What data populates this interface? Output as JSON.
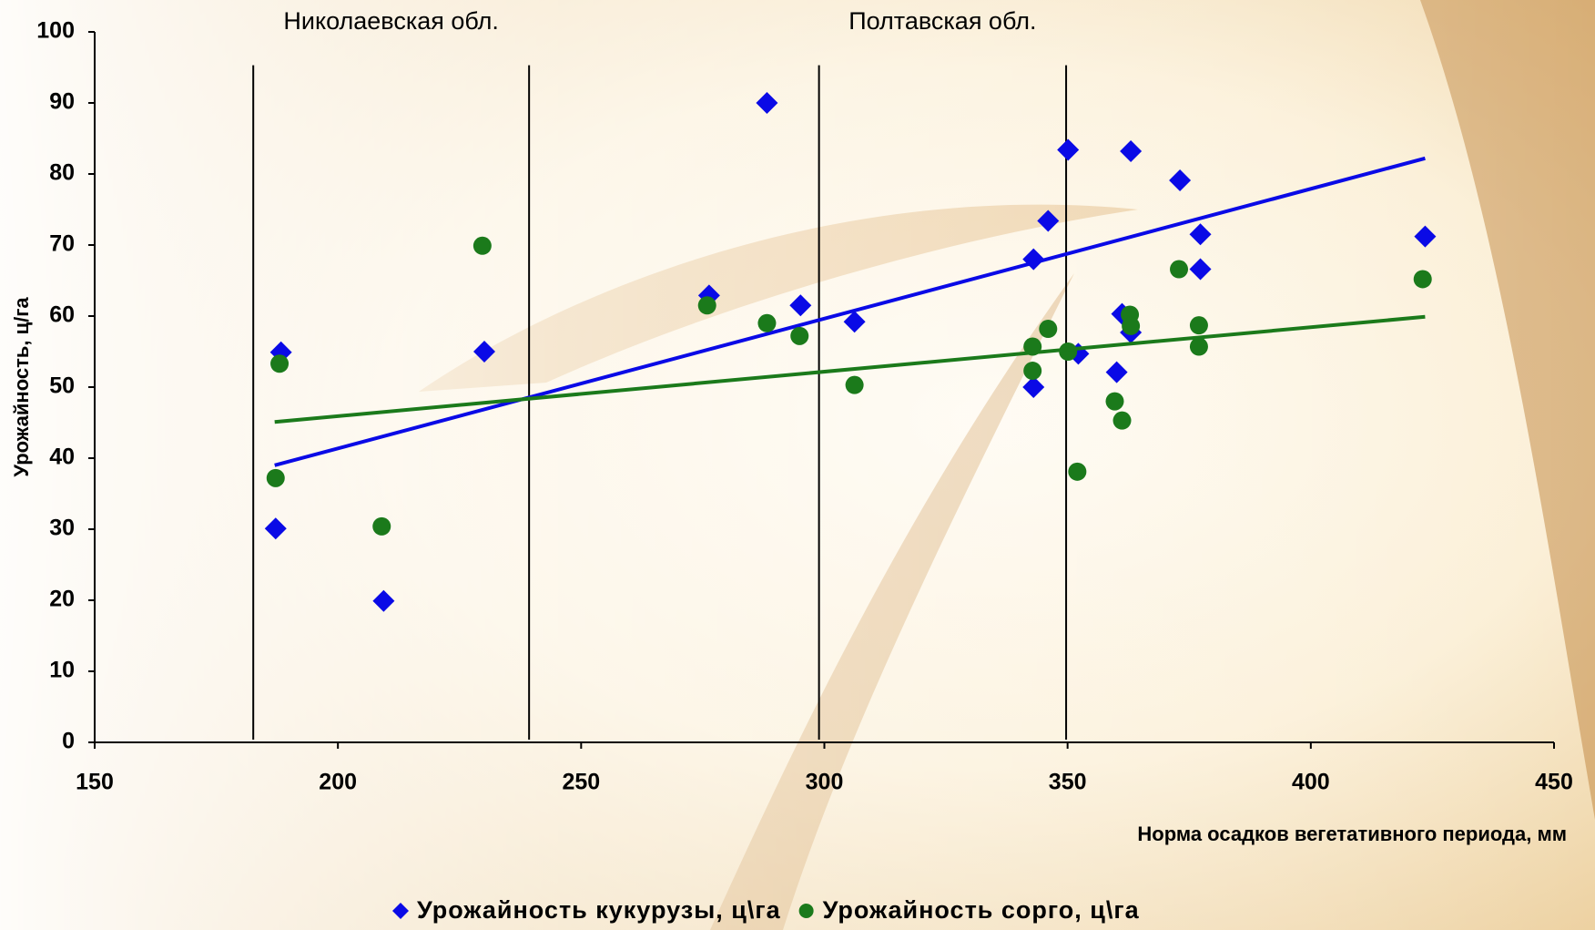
{
  "chart_data": {
    "type": "scatter",
    "x_label": "Норма осадков  вегетативного периода, мм",
    "y_label": "Урожайность, ц/га",
    "xlim": [
      150,
      450
    ],
    "xticks": [
      150,
      200,
      250,
      300,
      350,
      400,
      450
    ],
    "ylim": [
      0,
      100
    ],
    "yticks": [
      0,
      10,
      20,
      30,
      40,
      50,
      60,
      70,
      80,
      90,
      100
    ],
    "legend": "bottom",
    "regions": [
      {
        "label": "Николаевская обл.",
        "x": [
          182.6,
          239.3
        ]
      },
      {
        "label": "Полтавская обл.",
        "x": [
          298.9,
          349.7
        ]
      }
    ],
    "series": [
      {
        "name": "Урожайность кукурузы, ц\\га",
        "color": "#0a0ae6",
        "marker": "diamond",
        "x": [
          187.2,
          188.3,
          209.4,
          230.1,
          276.3,
          288.2,
          295.1,
          306.2,
          343,
          343,
          346,
          350.1,
          352.2,
          360.1,
          361.2,
          363,
          363,
          373.1,
          377.3,
          377.3,
          423.5
        ],
        "values": [
          30.1,
          54.9,
          19.9,
          55,
          62.9,
          90,
          61.5,
          59.2,
          68,
          50,
          73.4,
          83.4,
          54.7,
          52.1,
          60.3,
          57.7,
          83.2,
          79.1,
          71.5,
          66.6,
          71.2
        ],
        "trendline": {
          "x": [
            187,
            423.5
          ],
          "y": [
            39,
            82.2
          ]
        }
      },
      {
        "name": "Урожайность сорго, ц\\га",
        "color": "#1b7a1b",
        "marker": "circle",
        "x": [
          187.2,
          188,
          209,
          229.7,
          275.9,
          288.2,
          294.9,
          306.2,
          342.8,
          342.8,
          346,
          350.1,
          352,
          359.7,
          361.2,
          362.8,
          363,
          372.9,
          377,
          377,
          423
        ],
        "values": [
          37.2,
          53.3,
          30.4,
          69.9,
          61.5,
          59,
          57.2,
          50.3,
          55.7,
          52.3,
          58.2,
          55,
          38.1,
          48,
          45.3,
          60.2,
          58.6,
          66.6,
          58.7,
          55.7,
          65.2
        ],
        "trendline": {
          "x": [
            187,
            423.5
          ],
          "y": [
            45.1,
            59.9
          ]
        }
      }
    ]
  }
}
